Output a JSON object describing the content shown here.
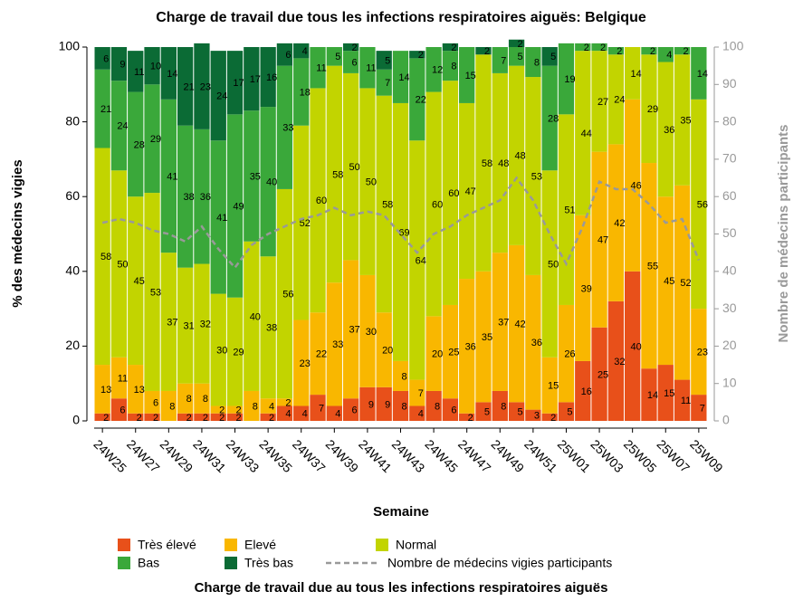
{
  "chart_data": {
    "type": "bar",
    "stacked": true,
    "title": "Charge de travail due tous les infections respiratoires aiguës: Belgique",
    "x_label": "Semaine",
    "y_label": "% des médecins vigies",
    "y2_label": "Nombre de médecins participants",
    "legend_title": "Charge de travail due au tous les infections respiratoires aiguës",
    "legend_position": "bottom",
    "categories": [
      "24W25",
      null,
      "24W27",
      null,
      "24W29",
      null,
      "24W31",
      null,
      "24W33",
      null,
      "24W35",
      null,
      "24W37",
      null,
      "24W39",
      null,
      "24W41",
      null,
      "24W43",
      null,
      "24W45",
      null,
      "24W47",
      null,
      "24W49",
      null,
      "24W51",
      null,
      "25W01",
      null,
      "25W03",
      null,
      "25W05",
      null,
      "25W07",
      null,
      "25W09"
    ],
    "ylim": [
      0,
      100
    ],
    "yticks": [
      0,
      20,
      40,
      60,
      80,
      100
    ],
    "y2lim": [
      0,
      100
    ],
    "y2ticks": [
      0,
      10,
      20,
      30,
      40,
      50,
      60,
      70,
      80,
      90,
      100
    ],
    "series": [
      {
        "name": "Très élevé",
        "color": "#e8501a",
        "values": [
          2,
          6,
          2,
          2,
          0,
          2,
          2,
          2,
          2,
          0,
          2,
          4,
          4,
          7,
          4,
          6,
          9,
          9,
          8,
          4,
          8,
          6,
          2,
          5,
          8,
          5,
          3,
          2,
          5,
          16,
          25,
          32,
          40,
          14,
          15,
          11,
          7
        ]
      },
      {
        "name": "Elevé",
        "color": "#f9b700",
        "values": [
          13,
          11,
          13,
          6,
          8,
          8,
          8,
          2,
          2,
          8,
          4,
          2,
          23,
          22,
          33,
          37,
          30,
          20,
          8,
          7,
          20,
          25,
          36,
          35,
          37,
          42,
          36,
          15,
          26,
          39,
          47,
          42,
          46,
          55,
          45,
          52,
          23
        ]
      },
      {
        "name": "Normal",
        "color": "#c2d400",
        "values": [
          58,
          50,
          45,
          53,
          37,
          31,
          32,
          30,
          29,
          40,
          38,
          56,
          52,
          60,
          58,
          50,
          50,
          58,
          69,
          64,
          60,
          60,
          47,
          58,
          48,
          48,
          53,
          50,
          51,
          44,
          27,
          24,
          14,
          29,
          36,
          35,
          56
        ]
      },
      {
        "name": "Bas",
        "color": "#3aa83a",
        "values": [
          21,
          24,
          28,
          29,
          41,
          38,
          36,
          41,
          49,
          35,
          40,
          33,
          18,
          11,
          5,
          6,
          11,
          7,
          14,
          22,
          12,
          8,
          15,
          0,
          7,
          5,
          8,
          28,
          19,
          2,
          2,
          2,
          0,
          2,
          4,
          2,
          14
        ]
      },
      {
        "name": "Très bas",
        "color": "#0b6b35",
        "values": [
          6,
          9,
          11,
          10,
          14,
          21,
          23,
          24,
          17,
          17,
          16,
          6,
          4,
          0,
          0,
          2,
          0,
          5,
          0,
          2,
          0,
          2,
          0,
          2,
          0,
          2,
          0,
          5,
          0,
          0,
          0,
          0,
          0,
          0,
          0,
          0,
          0
        ]
      },
      {
        "name": "Nombre de médecins vigies participants",
        "color": "#999999",
        "axis": "y2",
        "style": "dashed",
        "values": [
          53,
          54,
          53,
          51,
          50,
          48,
          52,
          46,
          41,
          47,
          50,
          52,
          54,
          55,
          57,
          55,
          56,
          55,
          50,
          45,
          50,
          52,
          55,
          57,
          59,
          65,
          59,
          50,
          42,
          52,
          64,
          62,
          62,
          58,
          53,
          54,
          43
        ]
      }
    ]
  }
}
